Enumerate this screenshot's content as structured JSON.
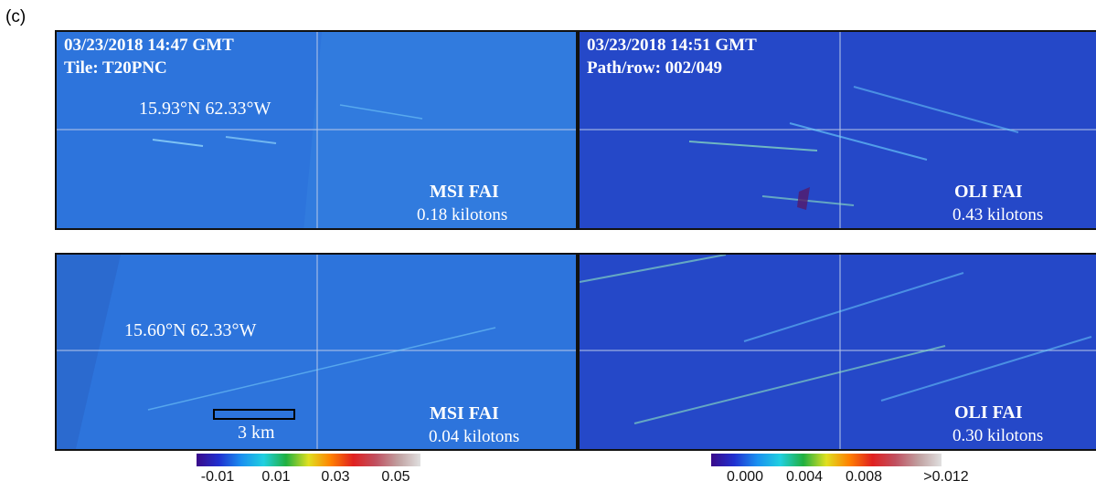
{
  "figure_label": "(c)",
  "panels": [
    {
      "lines": [
        "03/23/2018 14:47 GMT",
        "Tile: T20PNC"
      ],
      "coordinate": "15.93°N 62.33°W",
      "sensor": "MSI FAI",
      "biomass": "0.18 kilotons"
    },
    {
      "lines": [
        "03/23/2018 14:51 GMT",
        "Path/row: 002/049"
      ],
      "sensor": "OLI FAI",
      "biomass": "0.43 kilotons"
    },
    {
      "coordinate": "15.60°N 62.33°W",
      "sensor": "MSI FAI",
      "biomass": "0.04 kilotons"
    },
    {
      "sensor": "OLI FAI",
      "biomass": "0.30 kilotons"
    }
  ],
  "scale_bar": "3 km",
  "colorbars": [
    {
      "ticks": [
        "-0.01",
        "0.01",
        "0.03",
        "0.05"
      ]
    },
    {
      "ticks": [
        "0.000",
        "0.004",
        "0.008",
        ">0.012"
      ]
    }
  ]
}
